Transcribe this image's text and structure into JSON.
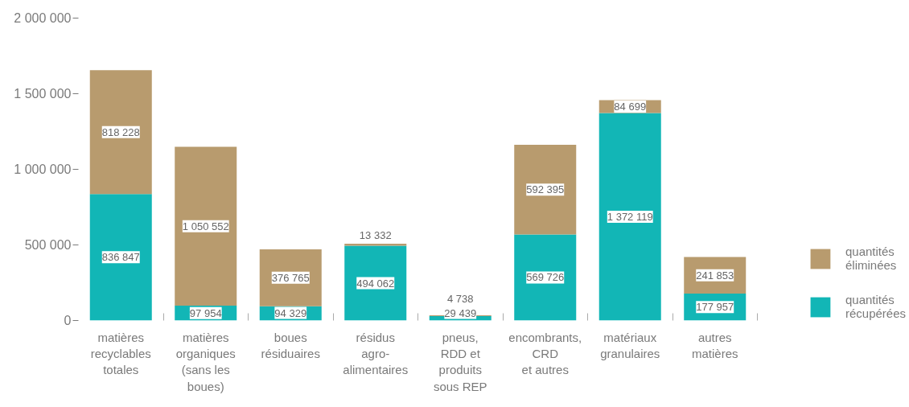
{
  "chart_data": {
    "type": "bar",
    "stacked": true,
    "categories": [
      "matières\nrecyclables\ntotales",
      "matières\norganiques\n(sans les\nboues)",
      "boues\nrésiduaires",
      "résidus\nagro-\nalimentaires",
      "pneus,\nRDD et\nproduits\nsous REP",
      "encombrants,\nCRD\net autres",
      "matériaux\ngranulaires",
      "autres\nmatières"
    ],
    "series": [
      {
        "name": "quantités\nrécupérées",
        "color": "#12b6b6",
        "values": [
          836847,
          97954,
          94329,
          494062,
          29439,
          569726,
          1372119,
          177957
        ],
        "value_labels": [
          "836 847",
          "97 954",
          "94 329",
          "494 062",
          "29 439",
          "569 726",
          "1 372 119",
          "177 957"
        ]
      },
      {
        "name": "quantités\néliminées",
        "color": "#b89b6e",
        "values": [
          818228,
          1050552,
          376765,
          13332,
          4738,
          592395,
          84699,
          241853
        ],
        "value_labels": [
          "818 228",
          "1 050 552",
          "376 765",
          "13 332",
          "4 738",
          "592 395",
          "84 699",
          "241 853"
        ]
      }
    ],
    "ylim": [
      0,
      2000000
    ],
    "yticks": [
      0,
      {
        "value": 500000,
        "label": "500 000"
      },
      {
        "value": 1000000,
        "label": "1 000 000"
      },
      {
        "value": 1500000,
        "label": "1 500 000"
      },
      {
        "value": 2000000,
        "label": "2 000 000"
      }
    ],
    "legend": "bottom right"
  }
}
